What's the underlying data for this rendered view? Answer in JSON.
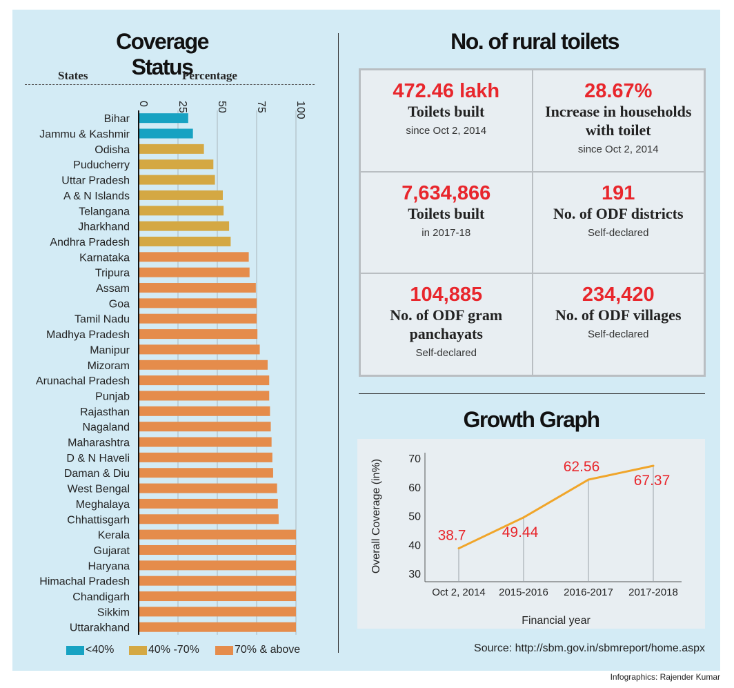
{
  "left": {
    "title": "Coverage Status",
    "col_states": "States",
    "col_percentage": "Percentage"
  },
  "right": {
    "title": "No. of rural toilets",
    "stats": [
      {
        "value": "472.46 lakh",
        "label": "Toilets built",
        "sub": "since Oct 2, 2014"
      },
      {
        "value": "28.67%",
        "label": "Increase in households with toilet",
        "sub": "since Oct 2, 2014"
      },
      {
        "value": "7,634,866",
        "label": "Toilets built",
        "sub": "in 2017-18"
      },
      {
        "value": "191",
        "label": "No. of ODF districts",
        "sub": "Self-declared"
      },
      {
        "value": "104,885",
        "label": "No. of ODF gram panchayats",
        "sub": "Self-declared"
      },
      {
        "value": "234,420",
        "label": "No. of ODF villages",
        "sub": "Self-declared"
      }
    ]
  },
  "growth": {
    "title": "Growth Graph"
  },
  "legend": [
    {
      "label": "<40%",
      "color": "#17a2c2"
    },
    {
      "label": "40% -70%",
      "color": "#d4a843"
    },
    {
      "label": "70% & above",
      "color": "#e58c4b"
    }
  ],
  "source": "Source: http://sbm.gov.in/sbmreport/home.aspx",
  "credit": "Infographics: Rajender Kumar",
  "colors": {
    "low": "#17a2c2",
    "mid": "#d4a843",
    "high": "#e58c4b",
    "accent": "#e8262c",
    "line": "#f0a52a",
    "background": "#d3ebf5"
  },
  "chart_data": [
    {
      "type": "bar",
      "orientation": "horizontal",
      "title": "Coverage Status",
      "xlabel": "Percentage",
      "ylabel": "States",
      "xlim": [
        0,
        100
      ],
      "xticks": [
        "0",
        "25",
        "50",
        "75",
        "100"
      ],
      "categories": [
        "Bihar",
        "Jammu & Kashmir",
        "Odisha",
        "Puducherry",
        "Uttar Pradesh",
        "A & N Islands",
        "Telangana",
        "Jharkhand",
        "Andhra Pradesh",
        "Karnataka",
        "Tripura",
        "Assam",
        "Goa",
        "Tamil Nadu",
        "Madhya Pradesh",
        "Manipur",
        "Mizoram",
        "Arunachal Pradesh",
        "Punjab",
        "Rajasthan",
        "Nagaland",
        "Maharashtra",
        "D & N Haveli",
        "Daman & Diu",
        "West Bengal",
        "Meghalaya",
        "Chhattisgarh",
        "Kerala",
        "Gujarat",
        "Haryana",
        "Himachal Pradesh",
        "Chandigarh",
        "Sikkim",
        "Uttarakhand"
      ],
      "values": [
        31.5,
        34.5,
        41.5,
        47.5,
        48.5,
        53.5,
        54,
        57.5,
        58.5,
        70,
        70.5,
        74.5,
        75,
        75,
        75.5,
        77,
        82,
        83,
        83,
        83.5,
        84,
        84.5,
        85,
        85.5,
        88,
        88.5,
        89,
        100,
        100,
        100,
        100,
        100,
        100,
        100
      ],
      "legend": [
        "<40%",
        "40% -70%",
        "70% & above"
      ],
      "grid": true
    },
    {
      "type": "line",
      "title": "Growth Graph",
      "xlabel": "Financial year",
      "ylabel": "Overall Coverage (in%)",
      "x": [
        "Oct 2, 2014",
        "2015-2016",
        "2016-2017",
        "2017-2018"
      ],
      "y": [
        38.7,
        49.44,
        62.56,
        67.37
      ],
      "data_labels": [
        "38.7",
        "49.44",
        "62.56",
        "67.37"
      ],
      "ylim": [
        30,
        70
      ],
      "yticks": [
        "30",
        "40",
        "50",
        "60",
        "70"
      ],
      "grid": false
    }
  ]
}
